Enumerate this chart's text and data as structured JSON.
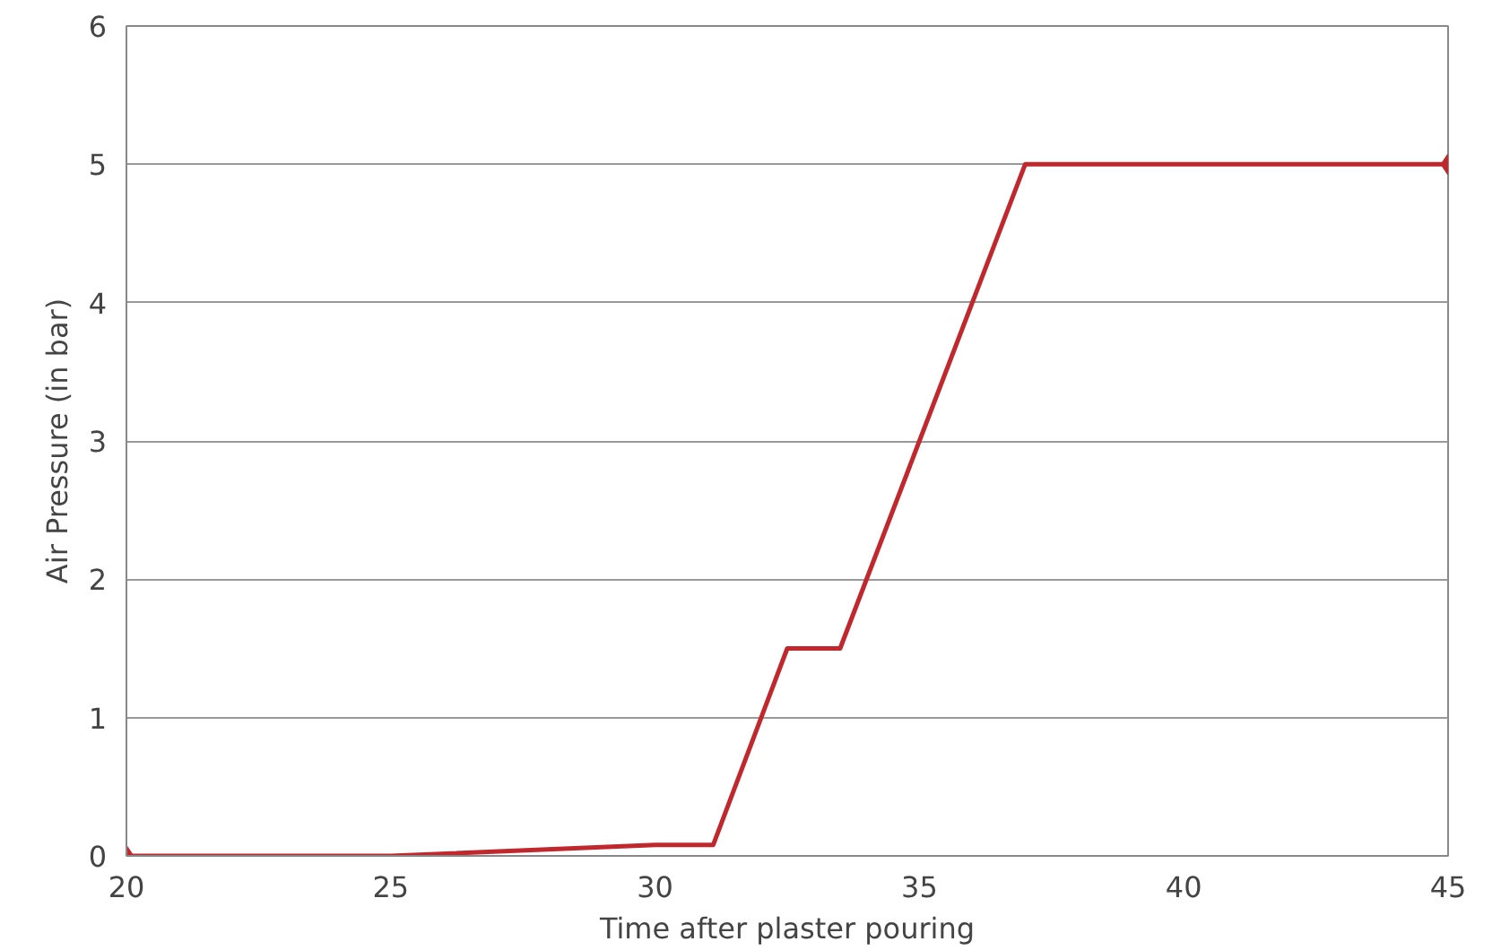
{
  "chart_data": {
    "type": "line",
    "xlabel": "Time after plaster pouring",
    "ylabel": "Air Pressure (in bar)",
    "xlim": [
      20,
      45
    ],
    "xticks": [
      20,
      25,
      30,
      35,
      40,
      45
    ],
    "ylim": [
      0,
      6
    ],
    "yticks": [
      0,
      1,
      2,
      3,
      4,
      5,
      6
    ],
    "grid": "y",
    "line_style": "solid",
    "series": [
      {
        "color": "#c0282d",
        "x": [
          20,
          25,
          30,
          31.1,
          32.5,
          33.5,
          37,
          45
        ],
        "values": [
          0,
          0,
          0.08,
          0.08,
          1.5,
          1.5,
          5,
          5
        ]
      },
      {
        "type": "scatter",
        "marker": "diamond",
        "color": "#c0282d",
        "x": [
          20,
          45
        ],
        "values": [
          0,
          5
        ]
      }
    ]
  }
}
